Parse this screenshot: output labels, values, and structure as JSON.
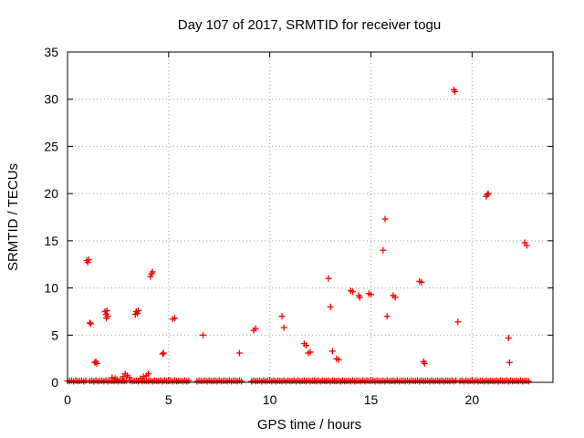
{
  "chart_data": {
    "type": "scatter",
    "title": "Day 107 of 2017, SRMTID for receiver togu",
    "xlabel": "GPS time / hours",
    "ylabel": "SRMTID / TECUs",
    "xlim": [
      0,
      24
    ],
    "ylim": [
      0,
      35
    ],
    "x_ticks": [
      0,
      5,
      10,
      15,
      20
    ],
    "y_ticks": [
      0,
      5,
      10,
      15,
      20,
      25,
      30,
      35
    ],
    "grid": true,
    "marker": "plus",
    "series": [
      {
        "name": "SRMTID",
        "color": "#ff0000",
        "points": [
          [
            0.95,
            12.9
          ],
          [
            1.0,
            12.7
          ],
          [
            1.05,
            13.0
          ],
          [
            1.1,
            6.3
          ],
          [
            1.15,
            6.2
          ],
          [
            1.35,
            2.1
          ],
          [
            1.4,
            2.2
          ],
          [
            1.45,
            2.0
          ],
          [
            1.85,
            7.5
          ],
          [
            1.9,
            7.2
          ],
          [
            1.92,
            6.8
          ],
          [
            1.95,
            7.6
          ],
          [
            1.98,
            7.0
          ],
          [
            2.2,
            0.5
          ],
          [
            2.35,
            0.4
          ],
          [
            2.45,
            0.3
          ],
          [
            2.75,
            0.6
          ],
          [
            2.85,
            0.9
          ],
          [
            2.95,
            0.7
          ],
          [
            3.05,
            0.5
          ],
          [
            3.35,
            7.2
          ],
          [
            3.4,
            7.5
          ],
          [
            3.45,
            7.3
          ],
          [
            3.5,
            7.6
          ],
          [
            3.6,
            0.4
          ],
          [
            3.75,
            0.6
          ],
          [
            3.9,
            0.7
          ],
          [
            4.0,
            0.9
          ],
          [
            4.1,
            11.2
          ],
          [
            4.15,
            11.5
          ],
          [
            4.2,
            11.7
          ],
          [
            4.7,
            3.0
          ],
          [
            4.75,
            3.1
          ],
          [
            5.2,
            6.7
          ],
          [
            5.3,
            6.8
          ],
          [
            6.7,
            5.0
          ],
          [
            8.5,
            3.1
          ],
          [
            9.2,
            5.5
          ],
          [
            9.3,
            5.7
          ],
          [
            10.6,
            7.0
          ],
          [
            10.7,
            5.8
          ],
          [
            11.7,
            4.1
          ],
          [
            11.8,
            3.9
          ],
          [
            11.9,
            3.1
          ],
          [
            12.0,
            3.2
          ],
          [
            12.9,
            11.0
          ],
          [
            13.0,
            8.0
          ],
          [
            13.1,
            3.3
          ],
          [
            13.3,
            2.5
          ],
          [
            13.4,
            2.4
          ],
          [
            14.0,
            9.7
          ],
          [
            14.1,
            9.6
          ],
          [
            14.4,
            9.2
          ],
          [
            14.45,
            9.0
          ],
          [
            14.9,
            9.4
          ],
          [
            15.0,
            9.3
          ],
          [
            15.6,
            14.0
          ],
          [
            15.7,
            17.3
          ],
          [
            15.8,
            7.0
          ],
          [
            16.1,
            9.2
          ],
          [
            16.2,
            9.0
          ],
          [
            17.4,
            10.7
          ],
          [
            17.5,
            10.6
          ],
          [
            17.6,
            2.2
          ],
          [
            17.65,
            2.0
          ],
          [
            19.1,
            31.0
          ],
          [
            19.15,
            30.8
          ],
          [
            19.3,
            6.4
          ],
          [
            20.7,
            19.7
          ],
          [
            20.75,
            19.9
          ],
          [
            20.8,
            20.0
          ],
          [
            21.8,
            4.7
          ],
          [
            21.85,
            2.1
          ],
          [
            22.6,
            14.8
          ],
          [
            22.7,
            14.5
          ]
        ],
        "baseline_runs": [
          [
            0.0,
            0.9
          ],
          [
            1.1,
            2.9
          ],
          [
            3.1,
            6.0
          ],
          [
            6.4,
            8.0
          ],
          [
            8.1,
            8.6
          ],
          [
            9.1,
            11.6
          ],
          [
            11.7,
            16.8
          ],
          [
            16.9,
            18.0
          ],
          [
            18.1,
            19.2
          ],
          [
            19.4,
            22.8
          ]
        ],
        "baseline_value": 0.1
      }
    ]
  }
}
